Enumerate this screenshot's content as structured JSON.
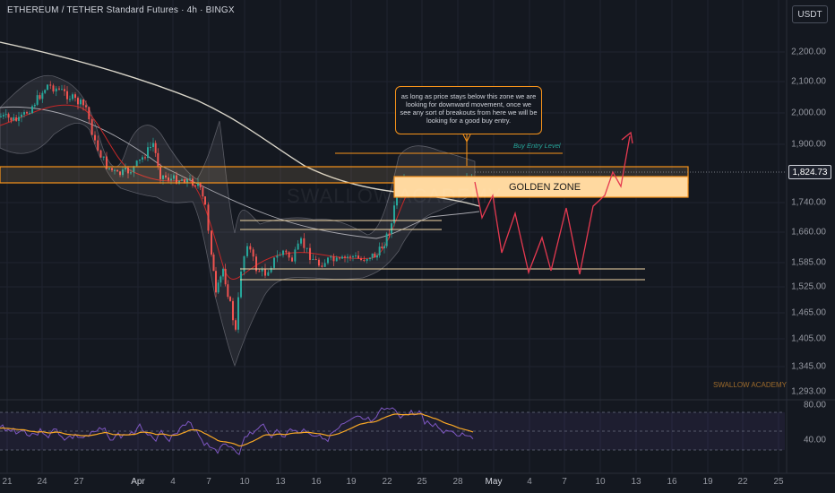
{
  "header": {
    "title": "ETHEREUM / TETHER Standard Futures · 4h · BINGX",
    "quote_currency": "USDT"
  },
  "price_axis": {
    "labels": [
      "2,200.00",
      "2,100.00",
      "2,000.00",
      "1,900.00",
      "1,740.00",
      "1,660.00",
      "1,585.00",
      "1,525.00",
      "1,465.00",
      "1,405.00",
      "1,345.00",
      "1,293.00"
    ],
    "current_price": "1,824.73"
  },
  "rsi_axis": {
    "labels": [
      "80.00",
      "40.00"
    ]
  },
  "time_axis": {
    "labels": [
      "21",
      "24",
      "27",
      "Apr",
      "4",
      "7",
      "10",
      "13",
      "16",
      "19",
      "22",
      "25",
      "28",
      "May",
      "4",
      "7",
      "10",
      "13",
      "16",
      "19",
      "22",
      "25"
    ]
  },
  "annotations": {
    "note": "as long as price stays below this zone we are looking for downward movement, once we see any sort of breakouts from here we will be looking for a good buy entry.",
    "golden_zone": "GOLDEN ZONE",
    "buy_entry": "Buy Entry Level",
    "watermark": "SWALLOW ACADEMY",
    "signature": "SWALLOW ACADEMY"
  },
  "colors": {
    "background": "#141820",
    "up": "#26a69a",
    "down": "#ef5350",
    "zone": "#f7931a",
    "zone_fill": "#ffcc80",
    "rsi": "#7e57c2",
    "rsi_ma": "#f9a825",
    "projection": "#e53950"
  }
}
